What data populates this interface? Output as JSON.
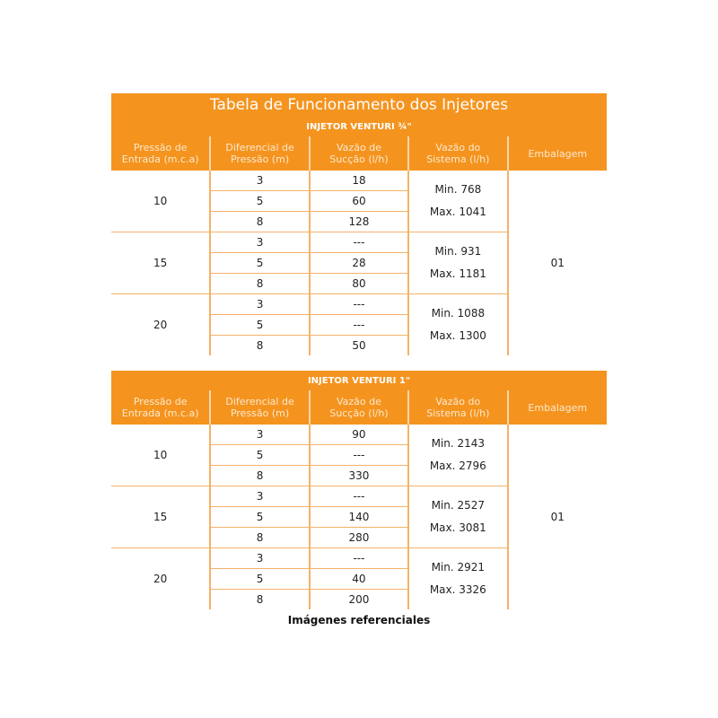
{
  "title": "Tabela de Funcionamento dos Injetores",
  "headers": [
    "Pressão de\nEntrada (m.c.a)",
    "Diferencial de\nPressão (m)",
    "Vazão de\nSucção (l/h)",
    "Vazão do\nSistema (l/h)",
    "Embalagem"
  ],
  "tables": [
    {
      "subtitle": "INJETOR VENTURI ¾\"",
      "embalagem": "01",
      "groups": [
        {
          "pressure": "10",
          "diffs": [
            "3",
            "5",
            "8"
          ],
          "suction": [
            "18",
            "60",
            "128"
          ],
          "min": "Min. 768",
          "max": "Max. 1041"
        },
        {
          "pressure": "15",
          "diffs": [
            "3",
            "5",
            "8"
          ],
          "suction": [
            "---",
            "28",
            "80"
          ],
          "min": "Min. 931",
          "max": "Max. 1181"
        },
        {
          "pressure": "20",
          "diffs": [
            "3",
            "5",
            "8"
          ],
          "suction": [
            "---",
            "---",
            "50"
          ],
          "min": "Min. 1088",
          "max": "Max. 1300"
        }
      ]
    },
    {
      "subtitle": "INJETOR VENTURI 1\"",
      "embalagem": "01",
      "groups": [
        {
          "pressure": "10",
          "diffs": [
            "3",
            "5",
            "8"
          ],
          "suction": [
            "90",
            "---",
            "330"
          ],
          "min": "Min. 2143",
          "max": "Max. 2796"
        },
        {
          "pressure": "15",
          "diffs": [
            "3",
            "5",
            "8"
          ],
          "suction": [
            "---",
            "140",
            "280"
          ],
          "min": "Min. 2527",
          "max": "Max. 3081"
        },
        {
          "pressure": "20",
          "diffs": [
            "3",
            "5",
            "8"
          ],
          "suction": [
            "---",
            "40",
            "200"
          ],
          "min": "Min. 2921",
          "max": "Max. 3326"
        }
      ]
    }
  ],
  "footnote": "Imágenes referenciales",
  "colors": {
    "header": "#f4941f",
    "lines": "#f4b26a"
  }
}
